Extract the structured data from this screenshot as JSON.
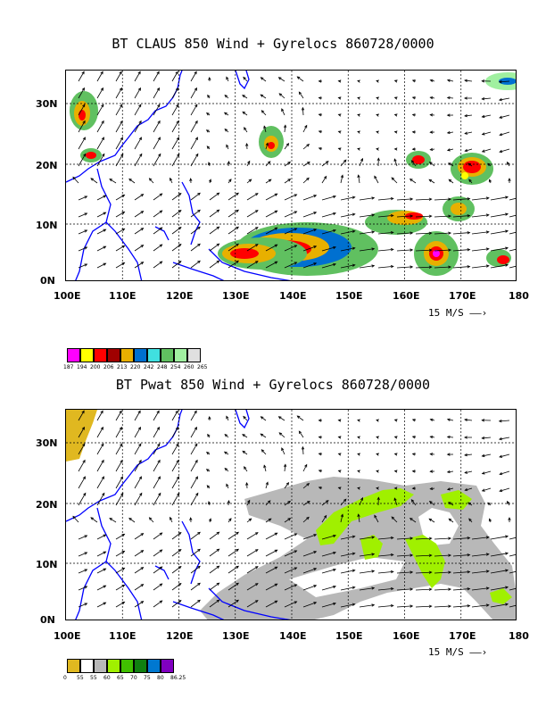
{
  "panel1": {
    "title": "BT CLAUS 850 Wind + Gyrelocs 860728/0000",
    "x_ticks": [
      "100E",
      "110E",
      "120E",
      "130E",
      "140E",
      "150E",
      "160E",
      "170E",
      "180"
    ],
    "y_ticks": [
      "30N",
      "20N",
      "10N",
      "0N"
    ],
    "ref_vector": "15 M/S",
    "colorbar": {
      "colors": [
        "#ff00ff",
        "#ffff00",
        "#ff0000",
        "#a00000",
        "#e8b000",
        "#0070d0",
        "#40e0e0",
        "#60c060",
        "#a0f0a0",
        "#e0e0e0"
      ],
      "labels": [
        "187",
        "194",
        "200",
        "206",
        "213",
        "220",
        "242",
        "248",
        "254",
        "260",
        "265"
      ]
    }
  },
  "panel2": {
    "title": "BT Pwat 850 Wind + Gyrelocs 860728/0000",
    "x_ticks": [
      "100E",
      "110E",
      "120E",
      "130E",
      "140E",
      "150E",
      "160E",
      "170E",
      "180"
    ],
    "y_ticks": [
      "30N",
      "20N",
      "10N",
      "0N"
    ],
    "ref_vector": "15 M/S",
    "colorbar": {
      "colors": [
        "#e0b820",
        "#ffffff",
        "#b8b8b8",
        "#a0f000",
        "#40c000",
        "#108010",
        "#0078d0",
        "#8000c0"
      ],
      "labels": [
        "0",
        "55",
        "55",
        "60",
        "65",
        "70",
        "75",
        "80",
        "86.25"
      ]
    }
  },
  "colors": {
    "coast": "#0000ff",
    "grid": "#000000"
  }
}
